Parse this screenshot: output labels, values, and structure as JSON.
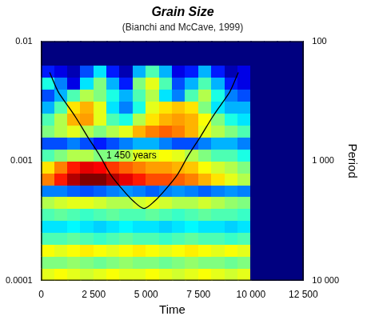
{
  "chart_data": {
    "type": "heatmap",
    "title": "Grain Size",
    "subtitle": "(Bianchi and McCave, 1999)",
    "xlabel": "Time",
    "y2label": "Period",
    "log": "y",
    "grid": false,
    "xlim": [
      0,
      12500
    ],
    "xticks": [
      0,
      {
        "value": 2500,
        "label": "2 500"
      },
      {
        "value": 5000,
        "label": "5 000"
      },
      {
        "value": 7500,
        "label": "7 500"
      },
      {
        "value": 10000,
        "label": "10 000"
      },
      {
        "value": 12500,
        "label": "12 500"
      }
    ],
    "ylim": [
      0.0001,
      0.01
    ],
    "yticks": [
      0.0001,
      0.001,
      0.01
    ],
    "y2lim": [
      100,
      10000
    ],
    "y2ticks": [
      100,
      {
        "value": 1000,
        "label": "1 000"
      },
      {
        "value": 10000,
        "label": "10 000"
      }
    ],
    "x_bins": [
      0,
      625,
      1250,
      1875,
      2500,
      3125,
      3750,
      4375,
      5000,
      5625,
      6250,
      6875,
      7500,
      8125,
      8750,
      9375,
      10000,
      10625,
      11250,
      11875,
      12500
    ],
    "y_bins": [
      0.0001,
      0.00012589,
      0.00015849,
      0.00019953,
      0.00025119,
      0.00031623,
      0.00039811,
      0.00050119,
      0.00063096,
      0.00079433,
      0.001,
      0.0012589,
      0.0015849,
      0.0019953,
      0.0025119,
      0.0031623,
      0.0039811,
      0.0050119,
      0.0063096,
      0.0079433,
      0.01
    ],
    "cells": [
      [
        0.6,
        0.62,
        0.6,
        0.58,
        0.6,
        0.62,
        0.6,
        0.6,
        0.62,
        0.6,
        0.58,
        0.6,
        0.62,
        0.6,
        0.58,
        0.6,
        0,
        0,
        0,
        0
      ],
      [
        0.5,
        0.5,
        0.52,
        0.5,
        0.48,
        0.5,
        0.52,
        0.5,
        0.5,
        0.48,
        0.5,
        0.52,
        0.5,
        0.5,
        0.48,
        0.5,
        0,
        0,
        0,
        0
      ],
      [
        0.62,
        0.6,
        0.62,
        0.64,
        0.62,
        0.6,
        0.62,
        0.64,
        0.62,
        0.6,
        0.62,
        0.64,
        0.62,
        0.6,
        0.62,
        0.6,
        0,
        0,
        0,
        0
      ],
      [
        0.45,
        0.45,
        0.47,
        0.45,
        0.43,
        0.45,
        0.47,
        0.45,
        0.45,
        0.43,
        0.45,
        0.47,
        0.45,
        0.45,
        0.43,
        0.45,
        0,
        0,
        0,
        0
      ],
      [
        0.35,
        0.35,
        0.37,
        0.35,
        0.33,
        0.35,
        0.37,
        0.35,
        0.35,
        0.33,
        0.35,
        0.37,
        0.35,
        0.35,
        0.33,
        0.35,
        0,
        0,
        0,
        0
      ],
      [
        0.45,
        0.47,
        0.45,
        0.43,
        0.45,
        0.47,
        0.45,
        0.45,
        0.47,
        0.45,
        0.43,
        0.45,
        0.47,
        0.45,
        0.45,
        0.43,
        0,
        0,
        0,
        0
      ],
      [
        0.55,
        0.58,
        0.6,
        0.6,
        0.58,
        0.55,
        0.55,
        0.58,
        0.6,
        0.58,
        0.55,
        0.55,
        0.58,
        0.55,
        0.52,
        0.5,
        0,
        0,
        0,
        0
      ],
      [
        0.25,
        0.25,
        0.22,
        0.2,
        0.22,
        0.25,
        0.27,
        0.25,
        0.22,
        0.25,
        0.27,
        0.25,
        0.22,
        0.25,
        0.27,
        0.25,
        0,
        0,
        0,
        0
      ],
      [
        0.75,
        0.85,
        0.95,
        1,
        1,
        0.95,
        0.9,
        0.85,
        0.8,
        0.8,
        0.78,
        0.75,
        0.7,
        0.65,
        0.6,
        0.55,
        0,
        0,
        0,
        0
      ],
      [
        0.65,
        0.75,
        0.85,
        0.9,
        0.88,
        0.82,
        0.78,
        0.75,
        0.72,
        0.72,
        0.7,
        0.68,
        0.62,
        0.58,
        0.55,
        0.5,
        0,
        0,
        0,
        0
      ],
      [
        0.45,
        0.5,
        0.55,
        0.55,
        0.5,
        0.5,
        0.55,
        0.6,
        0.6,
        0.62,
        0.6,
        0.55,
        0.5,
        0.45,
        0.45,
        0.4,
        0,
        0,
        0,
        0
      ],
      [
        0.2,
        0.2,
        0.25,
        0.2,
        0.15,
        0.2,
        0.25,
        0.3,
        0.3,
        0.25,
        0.2,
        0.2,
        0.25,
        0.3,
        0.3,
        0.25,
        0,
        0,
        0,
        0
      ],
      [
        0.5,
        0.55,
        0.6,
        0.55,
        0.5,
        0.55,
        0.6,
        0.7,
        0.75,
        0.78,
        0.75,
        0.7,
        0.6,
        0.55,
        0.5,
        0.45,
        0,
        0,
        0,
        0
      ],
      [
        0.45,
        0.55,
        0.7,
        0.72,
        0.6,
        0.45,
        0.4,
        0.55,
        0.65,
        0.7,
        0.72,
        0.7,
        0.62,
        0.5,
        0.4,
        0.35,
        0,
        0,
        0,
        0
      ],
      [
        0.3,
        0.45,
        0.65,
        0.7,
        0.6,
        0.35,
        0.25,
        0.4,
        0.6,
        0.65,
        0.68,
        0.65,
        0.5,
        0.35,
        0.3,
        0.3,
        0,
        0,
        0,
        0
      ],
      [
        0.2,
        0.3,
        0.45,
        0.55,
        0.5,
        0.4,
        0.3,
        0.45,
        0.55,
        0.35,
        0.25,
        0.45,
        0.55,
        0.4,
        0.25,
        0.2,
        0,
        0,
        0,
        0
      ],
      [
        0.4,
        0.25,
        0.1,
        0.35,
        0.5,
        0.3,
        0.15,
        0.5,
        0.6,
        0.45,
        0.2,
        0.3,
        0.45,
        0.3,
        0.15,
        0.1,
        0,
        0,
        0,
        0
      ],
      [
        0.15,
        0.1,
        0.05,
        0.2,
        0.35,
        0.15,
        0.05,
        0.3,
        0.45,
        0.3,
        0.1,
        0.15,
        0.3,
        0.15,
        0.05,
        0.1,
        0,
        0,
        0,
        0
      ],
      [
        0,
        0,
        0,
        0,
        0,
        0,
        0,
        0,
        0,
        0,
        0,
        0,
        0,
        0,
        0,
        0,
        0,
        0,
        0,
        0
      ],
      [
        0,
        0,
        0,
        0,
        0,
        0,
        0,
        0,
        0,
        0,
        0,
        0,
        0,
        0,
        0,
        0,
        0,
        0,
        0,
        0
      ]
    ],
    "cone": {
      "color": "#000000",
      "x": [
        400,
        800,
        1200,
        1650,
        2200,
        2800,
        3300,
        3900,
        4400,
        4900,
        5400,
        5900,
        6500,
        7000,
        7600,
        8150,
        8600,
        9000,
        9400
      ],
      "y": [
        0.0055,
        0.0038,
        0.003,
        0.0023,
        0.0016,
        0.0011,
        0.00077,
        0.00057,
        0.00046,
        0.0004,
        0.00046,
        0.00057,
        0.00077,
        0.0011,
        0.0016,
        0.0023,
        0.003,
        0.0038,
        0.0055
      ]
    },
    "annotations": [
      {
        "text": "1 450 years",
        "x": 4300,
        "y": 0.0011
      }
    ]
  }
}
